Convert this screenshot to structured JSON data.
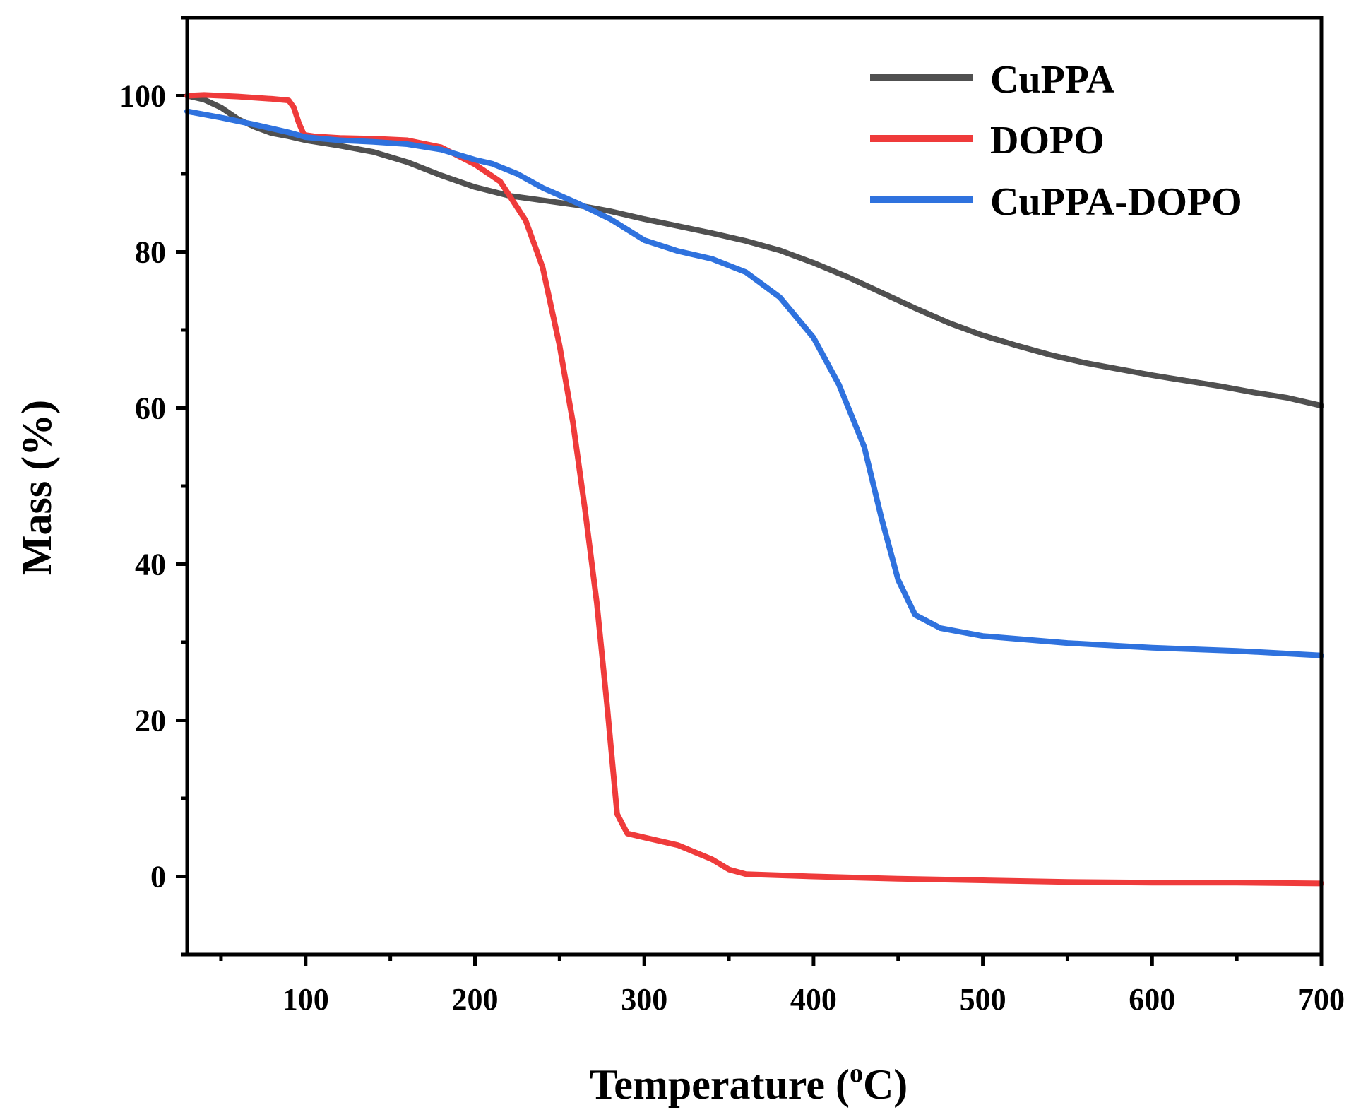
{
  "chart_data": {
    "type": "line",
    "title": "",
    "xlabel": "Temperature (",
    "xlabel_sup": "o",
    "xlabel_end": "C)",
    "ylabel": "Mass (%)",
    "xlim": [
      30,
      700
    ],
    "ylim": [
      -10,
      110
    ],
    "x_ticks": [
      100,
      200,
      300,
      400,
      500,
      600,
      700
    ],
    "x_tick_labels": [
      "100",
      "200",
      "300",
      "400",
      "500",
      "600",
      "700"
    ],
    "x_minor_ticks": [
      50,
      150,
      250,
      350,
      450,
      550,
      650
    ],
    "y_ticks": [
      0,
      20,
      40,
      60,
      80,
      100
    ],
    "y_tick_labels": [
      "0",
      "20",
      "40",
      "60",
      "80",
      "100"
    ],
    "y_minor_ticks": [
      -10,
      10,
      30,
      50,
      70,
      90,
      110
    ],
    "legend_position": "top-right",
    "series": [
      {
        "name": "CuPPA",
        "color": "#505050",
        "points": [
          [
            30,
            100
          ],
          [
            40,
            99.5
          ],
          [
            50,
            98.5
          ],
          [
            60,
            97
          ],
          [
            70,
            96
          ],
          [
            80,
            95.2
          ],
          [
            90,
            94.8
          ],
          [
            100,
            94.3
          ],
          [
            120,
            93.6
          ],
          [
            140,
            92.8
          ],
          [
            160,
            91.5
          ],
          [
            180,
            89.8
          ],
          [
            200,
            88.3
          ],
          [
            220,
            87.2
          ],
          [
            240,
            86.6
          ],
          [
            260,
            86
          ],
          [
            280,
            85.2
          ],
          [
            300,
            84.2
          ],
          [
            320,
            83.3
          ],
          [
            340,
            82.4
          ],
          [
            360,
            81.4
          ],
          [
            380,
            80.2
          ],
          [
            400,
            78.6
          ],
          [
            420,
            76.8
          ],
          [
            440,
            74.8
          ],
          [
            460,
            72.8
          ],
          [
            480,
            70.9
          ],
          [
            500,
            69.3
          ],
          [
            520,
            68
          ],
          [
            540,
            66.8
          ],
          [
            560,
            65.8
          ],
          [
            580,
            65
          ],
          [
            600,
            64.2
          ],
          [
            620,
            63.5
          ],
          [
            640,
            62.8
          ],
          [
            660,
            62
          ],
          [
            680,
            61.3
          ],
          [
            700,
            60.3
          ]
        ]
      },
      {
        "name": "DOPO",
        "color": "#ef3b3b",
        "points": [
          [
            30,
            100
          ],
          [
            40,
            100.1
          ],
          [
            60,
            99.9
          ],
          [
            80,
            99.6
          ],
          [
            90,
            99.4
          ],
          [
            93,
            98.5
          ],
          [
            96,
            96.5
          ],
          [
            99,
            95
          ],
          [
            105,
            94.8
          ],
          [
            120,
            94.6
          ],
          [
            140,
            94.5
          ],
          [
            160,
            94.3
          ],
          [
            180,
            93.4
          ],
          [
            200,
            91.2
          ],
          [
            215,
            89
          ],
          [
            230,
            84
          ],
          [
            240,
            78
          ],
          [
            250,
            68
          ],
          [
            258,
            58
          ],
          [
            265,
            47
          ],
          [
            272,
            35
          ],
          [
            278,
            22
          ],
          [
            284,
            8
          ],
          [
            290,
            5.5
          ],
          [
            300,
            5
          ],
          [
            320,
            4
          ],
          [
            340,
            2.2
          ],
          [
            350,
            0.9
          ],
          [
            360,
            0.3
          ],
          [
            400,
            0
          ],
          [
            450,
            -0.3
          ],
          [
            500,
            -0.5
          ],
          [
            550,
            -0.7
          ],
          [
            600,
            -0.8
          ],
          [
            650,
            -0.8
          ],
          [
            700,
            -0.9
          ]
        ]
      },
      {
        "name": "CuPPA-DOPO",
        "color": "#2f72de",
        "points": [
          [
            30,
            98
          ],
          [
            50,
            97.2
          ],
          [
            70,
            96.3
          ],
          [
            90,
            95.3
          ],
          [
            100,
            94.7
          ],
          [
            120,
            94.3
          ],
          [
            140,
            94.1
          ],
          [
            160,
            93.8
          ],
          [
            180,
            93.1
          ],
          [
            200,
            91.8
          ],
          [
            210,
            91.3
          ],
          [
            225,
            90
          ],
          [
            240,
            88.2
          ],
          [
            260,
            86.3
          ],
          [
            280,
            84.2
          ],
          [
            300,
            81.5
          ],
          [
            320,
            80.1
          ],
          [
            340,
            79.1
          ],
          [
            360,
            77.4
          ],
          [
            380,
            74.2
          ],
          [
            400,
            69
          ],
          [
            415,
            63
          ],
          [
            430,
            55
          ],
          [
            440,
            46
          ],
          [
            450,
            38
          ],
          [
            460,
            33.5
          ],
          [
            475,
            31.8
          ],
          [
            500,
            30.8
          ],
          [
            550,
            29.9
          ],
          [
            600,
            29.3
          ],
          [
            650,
            28.9
          ],
          [
            700,
            28.3
          ]
        ]
      }
    ]
  }
}
